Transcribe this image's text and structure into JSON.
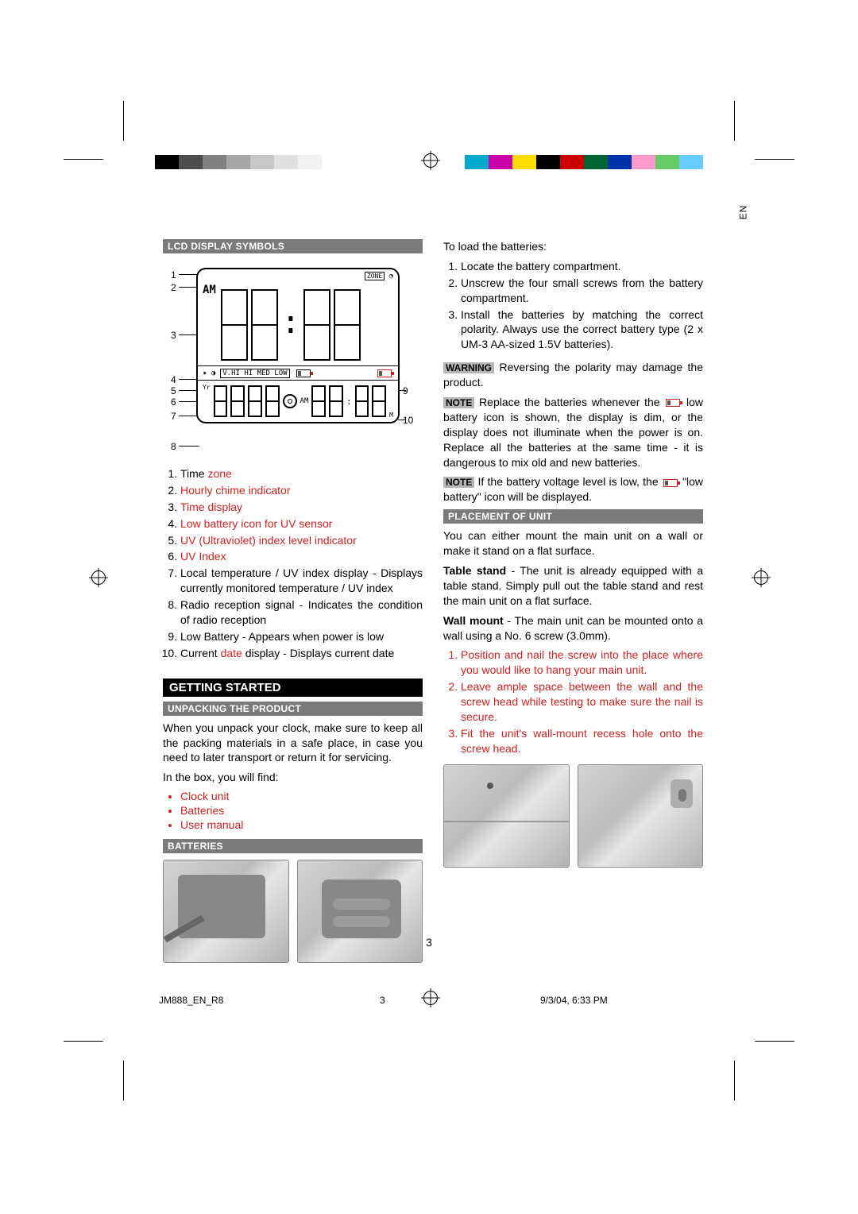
{
  "printer_marks": {
    "left_swatches": [
      "#000000",
      "#4d4d4d",
      "#808080",
      "#a6a6a6",
      "#c8c8c8",
      "#e0e0e0",
      "#f2f2f2"
    ],
    "right_swatches": [
      "#00aacc",
      "#cc00aa",
      "#ffdd00",
      "#000000",
      "#cc0000",
      "#006633",
      "#0033aa",
      "#ff99cc",
      "#66cc66",
      "#66ccff"
    ]
  },
  "language_tab": "EN",
  "sections": {
    "lcd_symbols_title": "LCD DISPLAY SYMBOLS",
    "getting_started_title": "GETTING STARTED",
    "unpacking_title": "UNPACKING THE PRODUCT",
    "batteries_title": "BATTERIES",
    "placement_title": "PLACEMENT OF UNIT"
  },
  "lcd_legend": [
    {
      "pre": "Time ",
      "red": "zone"
    },
    {
      "red": "Hourly chime indicator"
    },
    {
      "red": "Time display"
    },
    {
      "red": "Low battery icon for UV sensor"
    },
    {
      "red": "UV (Ultraviolet) index level indicator"
    },
    {
      "red": "UV Index"
    },
    {
      "pre": "Local temperature / UV index display - Displays currently monitored temperature / UV index"
    },
    {
      "pre": "Radio reception signal - Indicates the condition of radio reception"
    },
    {
      "pre": "Low Battery - Appears when power is low"
    },
    {
      "pre": "Current ",
      "red": "date",
      "post": " display - Displays current date"
    }
  ],
  "unpacking_para": "When you unpack your clock, make sure to keep all the packing materials in a safe place, in case you need to later transport or return it for servicing.",
  "in_box_intro": "In the box, you will find:",
  "in_box_items": [
    "Clock unit",
    "Batteries",
    "User manual"
  ],
  "batteries_intro": "To load the batteries:",
  "batteries_steps": [
    "Locate the battery compartment.",
    "Unscrew the four small screws from the battery compartment.",
    "Install the batteries by matching the correct polarity. Always use the correct battery type (2 x UM-3 AA-sized 1.5V batteries)."
  ],
  "warning_label": "WARNING",
  "warning_text": " Reversing the polarity may damage the product.",
  "note_label": "NOTE",
  "note1_pre": " Replace the batteries whenever the ",
  "note1_post": " low battery icon is shown, the display is dim, or the display does not illuminate when the power is on. Replace all the batteries at the same time - it is dangerous to mix old and new batteries.",
  "note2_pre": " If the battery voltage level is low, the ",
  "note2_post": " \"low battery\" icon will be displayed.",
  "placement_intro": "You can either mount the main unit on a wall or make it stand on a flat surface.",
  "table_stand_label": "Table stand",
  "table_stand_text": " - The unit is already equipped with a table stand. Simply pull out the table stand and rest the main unit on a flat surface.",
  "wall_mount_label": "Wall mount",
  "wall_mount_text": " - The main unit can be mounted onto a wall using a No. 6 screw (3.0mm).",
  "wall_steps": [
    "Position and nail the screw into the place where you would like to hang your main unit.",
    "Leave ample space between the wall and the screw head while testing to make sure the nail is secure.",
    "Fit the unit's wall-mount recess hole onto the screw head."
  ],
  "lcd_diagram": {
    "callouts_left": [
      "1",
      "2",
      "3",
      "4",
      "5",
      "6",
      "7",
      "8"
    ],
    "callouts_right": [
      "9",
      "10"
    ],
    "zone_label": "ZONE",
    "am_label": "AM",
    "bar_labels": "V.HI  HI  MED  LOW",
    "yr_label": "Yr",
    "d_label": "D",
    "m_label": "M"
  },
  "footer": {
    "page_number": "3",
    "file": "JM888_EN_R8",
    "sheet": "3",
    "timestamp": "9/3/04, 6:33 PM"
  }
}
